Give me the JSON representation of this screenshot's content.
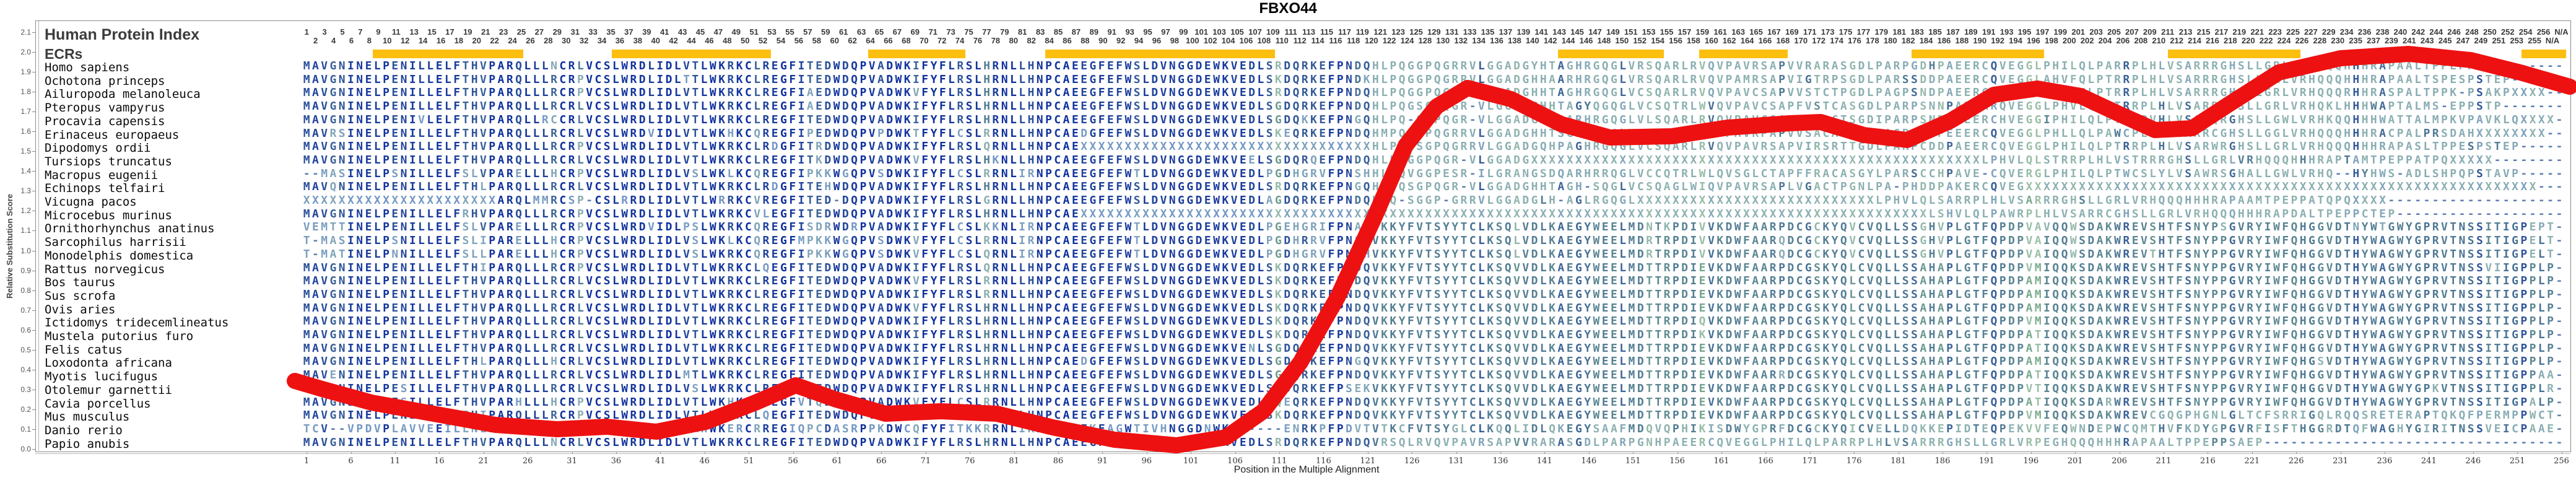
{
  "title": "FBXO44",
  "header": {
    "human_protein_index": "Human Protein Index",
    "ecrs_label": "ECRs"
  },
  "y_axis": {
    "label": "Relative Substitution Score",
    "min": 0.0,
    "max": 2.1,
    "step": 0.1
  },
  "x_axis": {
    "label": "Position in the Multiple Alignment",
    "min": 1,
    "max": 256,
    "step": 5
  },
  "ruler": {
    "segments": [
      [
        1,
        125
      ],
      [
        128,
        230
      ],
      [
        234,
        256
      ]
    ],
    "na_labels": [
      "N/A",
      "N/A"
    ]
  },
  "ecr_regions": [
    [
      9,
      25
    ],
    [
      36,
      53
    ],
    [
      65,
      75
    ],
    [
      85,
      110
    ],
    [
      143,
      154
    ],
    [
      159,
      168
    ],
    [
      183,
      197
    ],
    [
      212,
      226
    ],
    [
      252,
      256
    ]
  ],
  "colors": {
    "ecr_bar": "#fcbf10",
    "curve": "#ee1111",
    "conserved": "#0e2f9e",
    "variable": "#7cab8e",
    "mismatch_high": "#6f93c8",
    "mismatch_low": "#9bbfa6",
    "gap": "#5f7fb4"
  },
  "alignment": {
    "species": [
      "Homo sapiens",
      "Ochotona princeps",
      "Ailuropoda melanoleuca",
      "Pteropus vampyrus",
      "Procavia capensis",
      "Erinaceus europaeus",
      "Dipodomys ordii",
      "Tursiops truncatus",
      "Macropus eugenii",
      "Echinops telfairi",
      "Vicugna pacos",
      "Microcebus murinus",
      "Ornithorhynchus anatinus",
      "Sarcophilus harrisii",
      "Monodelphis domestica",
      "Rattus norvegicus",
      "Bos taurus",
      "Sus scrofa",
      "Ovis aries",
      "Ictidomys tridecemlineatus",
      "Mustela putorius furo",
      "Felis catus",
      "Loxodonta africana",
      "Myotis lucifugus",
      "Otolemur garnettii",
      "Cavia porcellus",
      "Mus musculus",
      "Danio rerio",
      "Papio anubis"
    ],
    "sequences": [
      "MAVGNINELPENILLELFTHVPARQLLLNCRLVCSLWRDLIDLVTLWKRKCLREGFITEDWDQPVADWKIFYFLRSLHRNLLHNPCAEEGFEFWSLDVNGGDEWKVEDLSRDQRKEFPNDQHLPQGGPQGRRVLGGADGYHTAGHRGQGLVRSQARLRVQVPAVRSAPVVRARASGDLPARPGDHPAEERCQVEGGLPHILQLPARRPLHLVSARRRGHSLLGRLVRHQQQHHHRAPAALTPPEPPSAEP------",
      "MAVGNINELPENILLELFTHVPARQLLLRCRPVCSLWRDLIDLTTLWKRKCLREGFITEDWDQPVADWKIFYFLRSLHRNLLHNPCAEEGFEFWSLDVNGGDEWKVEDLSKDQRKEFPNDKHLPQGGPQGRRVLGGADGHHAARHRGQGLVRSQARLRVQVPAMRSAPVIGTRPSGDLPARSSDDPAEERCQVEGGLAHVFQLPTRRPLHLVSARRRGHSLLGRLVRHQQQHHHRAPAALTSPESPSTEP----",
      "MAVGNINELPENILLELFTHVPARQLLLRCRPVCSLWRDLIDLVTLWKRKCLREGFIAEDWDQPVADWKVFYFLRSLHRNLLHNPCAEEGFEFWSLDVNGGDEWKVEDLSRDQRKEFPNDQHLPQGGPQGRRVLGGADGHHTAGHRGQGLVCSQARLRVQVPAVCSAPVVSTCTPGDLPAGPSNDPAEERCQVEGDLSPSLHLPTRRPLHLVSARRRGHSLLGRLVRHQQQRHHRASPALTPPK-PSAKPXXXX",
      "MAVGNINELPENILLELFTHVPARQLLLRCRLVCSLWRDLIDLVTLWKRKCLREGFIAEDWDQPVADWKIFYFLRSLHRNLLHNPCAEEGFEFWSLDVNGGDEWKVEDLSGDQRKEFPNDQHLPQGSGPQGR-VLGGADGHHTAGYQGQGLVCSQTRLWVQVPAVCSAPFVSTCASGDLPARPSNNPAEERRQVEGGLPHVLQLPTRRPLHLVSARRRHSLLGRLVRHQKLHHHWAPTALMS-EPPSTP-----",
      "MAVGNINELPENIVLELFTHVPARQLLRCCRLVCSLWRDLIDLVTLWKRKCLREGFITEDWDQPVADWKIFYFLRSLHRNLLHNPCAEEGFEFWSLDVNGGDEWKVEDLSGDQKKEFPNGQHLPQ-SGPQGR-VLGGADGHHPARHRGQGLVLSQARLRVQVPAVCSAPVIRACTSGDIPARPSNDPAEERCHVEGGIPHILQLPTWRPVHLVSAWQRGHSLLGWLVRHKQQHHHWATTALMPKVPAVKLQXXXX",
      "MAVRSINELPENILLELFTHVPARQLLLRCRLVCSLWRDVIDLVTLWKHKCQREGFIPEDWDQPVPDWKTFYFLCSLRRNLLHNPCAEDGFEFWSLDVNGGDEWKVEDLSKEQRKEFPNDQHMPQGGPQGRRVLGGADGHHTSGHPGEGLVRCSARLRV-VPAVRPAPVVSACASGDLPAGPSDYPEEERCQVEGGLPHLLQLPAWCPLHLVSARRCGHSLLGGLVRHQQQHHHRACPALPRSDAHXXXXXXXX",
      "MAVGNINELPENILLELFTHVPARQLLLRCRPVCSLWRDLIDLVTLWKRKCLRDGFITRDWDQPVADWKIFYFLRSLQRNLLHNPCAEXXXXXXXXXXXXXXXXXXXXXXXXXXXXXXXXXHLPQGSGPQGRRVLGGADGQHPAGHRGQGLVCSQARLRVQVPAVRSAPVIRSRTTGDLPARPCDDPAEERCQVEGGLPHILQLPTRRPLHLVSARWRGHSLLGRLVRHQQQHHHRAPASLTPPESPSTEP----",
      "MAVGNINELPENILLELFTHVPARQLLLRCRLVCSLWRDLIDLVTLWKRKCLREGFITKDWDQPVADWKVFYFLRSLHKNLLHNPCAEEGFEFWSLDVNGGDEWKVEELSGDQRQEFPNDQHLPQGGPQGR-VLGGADGXXXXXXXXXXXXXXXXXXXXXXXXXXXXXXXXXXXXXXXXXXXXXXXXXXXLPHVLQLSTRRPLHLVSTRRRGHSLLGRLVRHQQQHHHRAPTAMTPEPPATPQXXXXX",
      "--MASINELPSNILLELFSLVPARELLLHCRPVCSLWRDLIDLVSLWKLKCQREGFIPKKWGQPVSDWKIFYFLCSLRRNLIRNPCAEEGFEFWTLDVNGGDEWKVEDLPGDHGRVFPNSHHLPQVGGPESR-ILGRANGSDQARHRRQGLVCCQTRLWLQVSGLCTAPFFRACASGYLPARSCCHPAVE-CQVERGLPHILQLPTWCSLYLVSAWRSGHALLGWLVRHQ--HYHWS-ADLSHPQPSTAVP----",
      "MAVQNINELPENILLELFTHLPARQLLLRCRLVCSLWRDLIDLVTLWKRKCLRDGFITEHWDQPVADWKIFYFLRSLHRNLLHNPCAEEGFEFWSLDVNGGDEWKVEDLSRDQRKEFPNGQHLPQSGPQGR-VLGGADGHHTAGH-SQGLVCSQAGLWIQVPAVRSAPLVGACTPGNLPA-PHDDPAKERCQVEGXXXXXXXXXXXXXXXXXXXXXXXXXXXXXXXXXXXXXXXXXXXXXXXXXXXXXXXXXX",
      "XXXXXXXXXXXXXXXXXXXXXXARQLMMRCSP-CSLRRDLIDLVTLWRRKCVREGFITED-DQPVADWKIFYFLRSLGRNLLHNPCAEEGFEFWSLDVNGGDEWKVEDLAGDQRKEFPNDQHLQ-SGGP-GRRVLGGADGLH-AGLRGQGLXXXXXXXXXXXXXXXXXXXXXXXXXXXLPHVLQLSARRPLHLVSARRRGHSLLGRLVRHQQQHHHRAPAAMTPEPPATQPQXXXX",
      "MAVGNINELPENILLELFRHVPARQLLLRCRPVCSLWRDLIDLVTLWKRKCVLEGFITEDWDQPVADWKIFYFLRSLHRNLLHNPCAEXXXXXXXXXXXXXXXXXXXXXXXXXXXXXXXXXXXXXXXXXXXXXXXXXXXXXXXXXXXXXXXXXXXXXXXXXXXXXXXXXXXXXXXXXXXXXXXXLSHVLQLPAWRPLHLVSARRCGHSLLGRLVRHQQQHHHRAPDALTPEPPCTEP-----",
      "VEMTTINELPENILLELFSLVPARELLLRCRPVCSLWRDVIDLPSLWKRKCQREGFISDRWDRPVADWKIFYFLCSLKKNLIRNPCAEEGFEFWTLDVNGGDEWKVEDLPGEHGRIFPNAQVKKYFVTSYYTCLKSQLVDLKAEGYWEELMDNTKPDIVVKDWFAARPDCGCKYQVCVQLLSSGHVPLGTFQPDPVAVQQWSDAKWREVSHTFSNYPSGVRYIWFQHGGVDTNYWTGWYGPRVTNSSITIGPEPT",
      "T-MASINELPSNILLELFSLIPARELLLHCRPVCSLWRDLIDLVSLWKLKCQREGFMPKKWGQPVSDWKVFYFLCSLRRNLIRNPCAEEGFEFWTLDVNGGDEWKVEDLPGDHRRVFPNSHVKKYFVTSYYTCLKSQLVDLKAEGYWEELMDRTRPDIVVKDWFAARQDCGCKYQVCVQLLSSGHVPLGTFQPDPVAIQQWSDAKWREVSHTFSNYPPGVRYIWFQHGGVDTHYWAGWYGPRVTNSSITIGPELT",
      "T-MATINELPNNILLELFSLLPARELLLHCRPVCSLWRDLIDLVSLWKRKCQREGFIPKKWGQPVSDWKVFYFLCSLQRNLIRNPCAEEGFEFWTLDVNGGDEWKVEDLPGDHGRVFPNSHVKKYFVTSYYTCLKSQLVDLKAEGYWEELMDRTRPDIVVKDWFAARQDCGCKYQVCVQLLSSGHVPLGTFQPDPVAIQQWSDAKWREVTHTFSNYPPGVRYIWFQHGGVDTHYWAGWYGPRVTNSSITIGPELT",
      "MAVGNINELPENILLELFTHIPARQLLLRCRPVCSLWRDLIDLVTLWKRKCLQEGFITEDWDQPVADWKIFYFLRSLQRNLLHNPCAEEGFEFWSLDVNGGDEWKVEDLSKDQRKEFPNDQVKKYFVTSYYTCLKSQVVDLKAEGYWEELMDTTRPDIEVKDWFAARPDCGSKYQLCVQLLSSAHAPLGTFQPDPVMIQQKSDAKWREVSHTFSNYPPGVRYIWFQHGGVDTHYWAGWYGPRVTNSSVIIGPPLP",
      "MAVGNINELPENILLELFTHVPARQLLLRCRLVCSLWRDLIDLVTLWKRKCLREGFITEDWDQPVADWKVFYFLRSLRRNLLHNPCAEEGFEFWSLDVNGGDEWKVEDLSKDQRKEFPNDQVKKYFVTSYYTCLKSQVVDLKAEGYWEELMDTTRPDIEVKDWFAARPDCGSKYQLCVQLLSSAHAPLGTFQPDPAMIQQKSDAKWREVSHTFSNYPPGVRYIWFQHGGVDTHYWAGWYGPRVTNSSITIGPPLP",
      "MAVGNINELPENILLELFTHVPARQLLLRCRLVCSLWRDLIDLVTLWKRKCLREGFITEDWDQPVADWKIFYFLRSLRRNLLHNPCAEEGFEFWSLDVNGGDEWKVEDLSKDQRKEFPNDQVKKYFVTSYYTCLKSQVVDLKAEGYWEELMDTTRPDIEVKDWFAARPDCGSKYQLCVQLLSSAHAPLGTFQPDPAMIQQKSDAKWREVSHTFSNYPPGVRYIWFQHGGVDTHYWAGWYGPRVTNSSITIGPPLP",
      "MAVGNINELPENILLELFTHVPARQLLLRCRLVCSLWRDLIDLVTLWKRKCLREGFITEDWDQPVADWKVFYFLRSLHRNLLHNPCAEEGFEFWSLDVNGGDEWKVEDLSKDQRKEFPNDQVKKYFVTSYYTCLKSQVVDLKAEGYWEELMDTTRPDIEVKDWFAARPDCGSKYQLCVQLLSSAHAPLGTFQPDPAMIQQKSDAKWREVSHTFSNYPPGVRYIWFQHGGVDTHYWAGWYGPRVTNSSITIGPPLP",
      "MAVGNINELPENILLELFTHVPARQLLLRCRLVCSLWRDLIDLVTLWKRKCLREGFITEDWDQPVADWKIFYFLRSLHRNLLHNPCAEEGFEFWSLDVNGGDEWKVEDLSKDQRKEFPNDQVKKYFVTSYYTCLKSQVVDLKAEGYWEELMDTTRPDIQVKDWFAARPDCGSKYQLCVQLLSSAHAPLGTFQPDPVMIQQKSDAKWREVSHTFSNYPPGVRYIWFQHGGVDTHYWAGWYGPRVTNSSITIGPPLP",
      "MAVGNINELPENILLELFTHVPARQLLLRCRLVCSLWRDLIDLVTLWKRKCLREGFITEDWDQPVADWKIFYFLRSLHRNLLHNPCAEEGFEFWSLDVNGGDEWKVEDLSKDQRKEFPNDQVKKYFVTSYYTCLKSQVVDLKAEGYWEELMDTTRPDIKVKDWFAARPDCGSKYQLCVQLLSSAHAPLGTFQPDPATIQQKSDAKWREVSHTFSNYPPGVRYIWFQHGGVDTHYWAGWYGPRVTNSSITIGPPLP",
      "MAVGNINELPENILLELFTHVPARQLLLRCRLVCSLWRDLIDLVTLWKRKCLREGFITEDWDQPVADWKIFYFLRSLHRNLLHNPCAEEGFEFWSLDVNGGDEWKVENLSGDQRKEFPNDQVKKYFVTSYYTCLKSQVVDLKAEGYWEELMDTTRPDIEVKDWFAARPDCGSKYQLCVQLLSSAHAPLGTFQPDPATIQQKSDAKWREVSHTFSNYPPGVRYIWFQHGGVDTHYWAGWYGPRVTNSSITIGPPLP",
      "MAVGNINELPENILLELFTHLPARQLLLHCRLVCSLWRDLIDLVTLWKRKCLREGFITEDWDQPVADWKIFYFLRSLHRNLLHNPCAEDGFEFWSLDVNGGDEWKVEDLSGDQKKEFPNGQVKKYFVTSYYTCLKSQVVDLKAEGYWEELMDTTRPDIEVKDWFAARPDCGSKYQLCVQLLSSAHAPLGTFQPDPAMIQQKSDAKWREVSHTFSNYPPGVRYIWFQHGSVDTHYWAGWYGPRVTNSSITIGPPLP",
      "MAVENINELPENILLELFTHVPARQLLLRCRLVCSLWRDLIDLMTLWKRKCLREGFITEDWDQPVADWKIFYFLRSLHRNLLHNPCAEEGFEFWSLDVNGGDEWKVEDLSGDQRKEFPNDQVKKYFVTSYYTCLKSQVVDLKAEGYWEELMDTTRPDIEVKDWFAARRDCGSKYQLCVQLLSSAHAPLGTFQPDPATIQQKSDAKWREVSHTFSNYPPGVRYIWFQHGGVDTHYWAGWYGPRVTNSSITIGPPAA",
      "MAVGNINELPESILLELFTHVPARQLLLRCRLVCSLWRDLIDLVSLWKRKCLREGFITEDWDQPVADWKIFYFLRSLHRNLLHNPCAEEGFEFWSLDVNGGDEWKVEDLSRDQRKEFPSEKVKKYFVTSYYTCLKSQVVDLKAEGYWEELMDTTRPDIEVKDWFAARPDCGSKYQLCVQLLSSAHAPLGTFQPDPVTIQQKSDAKWREVSHTFSNYPPGVRYIWFQHGGVDTHYWAGWYGPKVTNSSITIGPPLR",
      "MAVGNINELPESILLELFTHVPARHLLLHCRPVCSLWRDLIDLVTLWKHKCLREGFVTQDWDQPVADWKVFYFLCSLRRNLLHNPCAEEGFEFWSLDVNGGDEWKVEDLSQEQRKEFPNDQVKKYFVTSYYTCLKSQVVDLKAEGYWEELMDTTRPDIEVKDWFAARPDCGSKYQLCVQLLSSAHAPLGTFQPDPATIQQKSDARWREVSHTFSNYPPGVRYIWFQHGGVDTHYWAGWYGPRVTNSSITIGPALP",
      "MAVGNINELPENILLELFIHIPARQLLLRCRPVCSLWRDLIDLVTLWKRKCLQEGFITEDWDQPVADWKIFYFLRSLQRNLLHNPCAEEGFEFWSLDVNGGDEWKVEDLSKDQRKEFPNDQVKKYFVTSYYTCLKSQVVDLKAEGYWEELMDTTRPDIEVKDWFAARPDCGSKYQLCVQLLSSAHAPLGTFQPDPVMIQQKSDAKWREVCGQGPHGNLGLTCFSRRIGQLRQQSRETERAPTQKQFPERMPPWCT",
      "TCV--VPDVPLAVVEEILLNLPAQQVVQVCRLVCPEWKELVDSSAHWKERCRREGIQPCDASRPPKDWCQFYFITKKRRNLIKNHKADEKFAGWTIVHNGGDNWKSE----ENRKPFPDVTVTKCFVTSYGLCLKQQLIDLQKEGYSAAFMDQVQPHIKISDWYGPRFDCGCKYQICVELLDQKKEPIDTEQPEKVVFEQWNDEPWCQMTHVFKDYGPGVRFISFTHGGRDTQFWAGHYGIRITNSSVEICPAAE",
      "MAVGNINELPENILLELFTHVPARQLLLNCRLVCSLWRDLIDLVTLWKRKCLREGFITEDWDQPVADWKIFYFLRSLHRNLLHNPCAEEGFEFWSLDVNGGDEWKVEDLSRDQRKEFPNDQVRSQLRVQVPAVRSAPVVRARASGDLPARPGNHPAEERCQVEGGLPHILQLPARRPLHLVSARRRGHSLLGRLVRPEGHQQQHHHRAPAALTPPEPPSAEP---------------------------------"
    ]
  },
  "curve": {
    "points": [
      [
        476,
        615
      ],
      [
        520,
        628
      ],
      [
        600,
        650
      ],
      [
        700,
        668
      ],
      [
        800,
        686
      ],
      [
        900,
        693
      ],
      [
        980,
        689
      ],
      [
        1060,
        697
      ],
      [
        1140,
        681
      ],
      [
        1220,
        650
      ],
      [
        1285,
        622
      ],
      [
        1350,
        645
      ],
      [
        1430,
        668
      ],
      [
        1520,
        664
      ],
      [
        1610,
        668
      ],
      [
        1700,
        690
      ],
      [
        1800,
        710
      ],
      [
        1900,
        719
      ],
      [
        1980,
        706
      ],
      [
        2040,
        664
      ],
      [
        2100,
        585
      ],
      [
        2160,
        480
      ],
      [
        2220,
        350
      ],
      [
        2270,
        235
      ],
      [
        2320,
        172
      ],
      [
        2370,
        142
      ],
      [
        2440,
        160
      ],
      [
        2520,
        200
      ],
      [
        2600,
        222
      ],
      [
        2700,
        220
      ],
      [
        2790,
        206
      ],
      [
        2890,
        199
      ],
      [
        2940,
        197
      ],
      [
        3010,
        218
      ],
      [
        3080,
        226
      ],
      [
        3150,
        195
      ],
      [
        3220,
        153
      ],
      [
        3290,
        143
      ],
      [
        3360,
        155
      ],
      [
        3420,
        183
      ],
      [
        3480,
        210
      ],
      [
        3540,
        207
      ],
      [
        3600,
        168
      ],
      [
        3680,
        117
      ],
      [
        3780,
        94
      ],
      [
        3890,
        87
      ],
      [
        3990,
        97
      ],
      [
        4070,
        117
      ],
      [
        4150,
        140
      ]
    ]
  }
}
